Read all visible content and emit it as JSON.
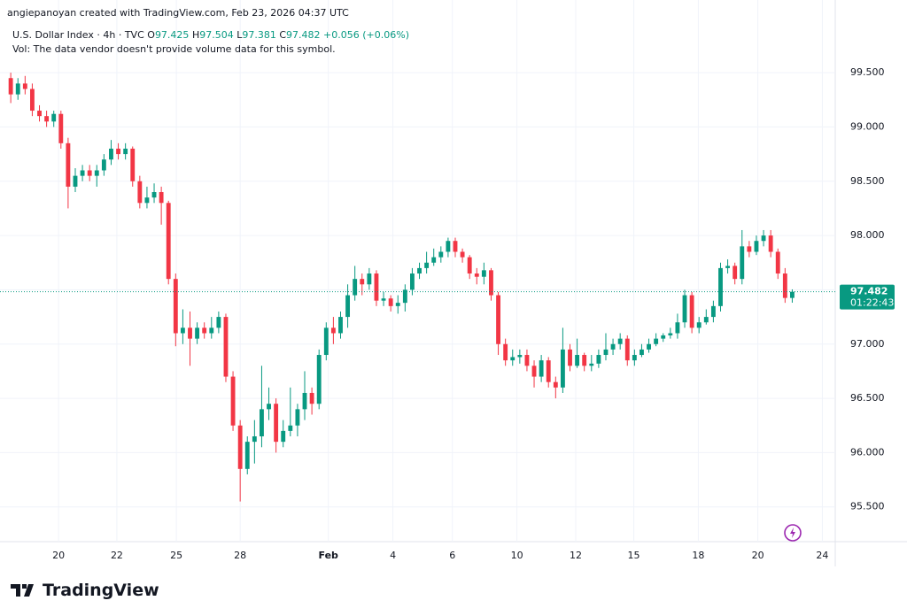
{
  "header": "angiepanoyan created with TradingView.com, Feb 23, 2026 04:37 UTC",
  "chart_data": {
    "type": "candlestick",
    "symbol": "U.S. Dollar Index · 4h · TVC",
    "legend_labels": {
      "open": "O",
      "high": "H",
      "low": "L",
      "close": "C"
    },
    "change": "+0.056 (+0.06%)",
    "volume_note": "Vol: The data vendor doesn't provide volume data for this symbol.",
    "countdown": "01:22:43",
    "up_color": "#089981",
    "down_color": "#f23645",
    "grid": true,
    "xlim": [
      -1.5,
      115
    ],
    "xticks": [
      {
        "value": 6.67,
        "label": "20"
      },
      {
        "value": 14.8,
        "label": "22"
      },
      {
        "value": 23.1,
        "label": "25"
      },
      {
        "value": 32,
        "label": "28"
      },
      {
        "value": 44.3,
        "label": "Feb"
      },
      {
        "value": 53.3,
        "label": "4"
      },
      {
        "value": 61.6,
        "label": "6"
      },
      {
        "value": 70.6,
        "label": "10"
      },
      {
        "value": 78.8,
        "label": "12"
      },
      {
        "value": 86.9,
        "label": "15"
      },
      {
        "value": 95.9,
        "label": "18"
      },
      {
        "value": 104.2,
        "label": "20"
      },
      {
        "value": 113.2,
        "label": "24"
      }
    ],
    "ylim": [
      95.18,
      99.99
    ],
    "yticks": [
      {
        "value": 95.5,
        "label": "95.500"
      },
      {
        "value": 96,
        "label": "96.000"
      },
      {
        "value": 96.5,
        "label": "96.500"
      },
      {
        "value": 97,
        "label": "97.000"
      },
      {
        "value": 97.5,
        "label": "97.500"
      },
      {
        "value": 98,
        "label": "98.000"
      },
      {
        "value": 98.5,
        "label": "98.500"
      },
      {
        "value": 99,
        "label": "99.000"
      },
      {
        "value": 99.5,
        "label": "99.500"
      }
    ],
    "open": [
      99.45,
      99.3,
      99.4,
      99.35,
      99.15,
      99.1,
      99.05,
      99.12,
      98.85,
      98.45,
      98.55,
      98.6,
      98.55,
      98.6,
      98.7,
      98.8,
      98.75,
      98.8,
      98.5,
      98.3,
      98.35,
      98.4,
      98.3,
      97.6,
      97.1,
      97.15,
      97.05,
      97.15,
      97.1,
      97.15,
      97.25,
      96.7,
      96.25,
      95.85,
      96.1,
      96.15,
      96.4,
      96.45,
      96.1,
      96.2,
      96.25,
      96.4,
      96.55,
      96.45,
      96.9,
      97.15,
      97.1,
      97.25,
      97.45,
      97.6,
      97.55,
      97.65,
      97.4,
      97.42,
      97.35,
      97.38,
      97.5,
      97.65,
      97.7,
      97.75,
      97.8,
      97.85,
      97.95,
      97.85,
      97.8,
      97.65,
      97.62,
      97.68,
      97.45,
      97.0,
      96.85,
      96.88,
      96.9,
      96.8,
      96.7,
      96.85,
      96.65,
      96.6,
      96.95,
      96.8,
      96.9,
      96.8,
      96.82,
      96.9,
      96.95,
      97.0,
      97.05,
      96.85,
      96.9,
      96.95,
      97.0,
      97.05,
      97.08,
      97.1,
      97.2,
      97.45,
      97.15,
      97.2,
      97.25,
      97.35,
      97.7,
      97.72,
      97.6,
      97.9,
      97.85,
      97.95,
      98.0,
      97.85,
      97.65,
      97.425
    ],
    "high": [
      99.5,
      99.45,
      99.47,
      99.4,
      99.2,
      99.15,
      99.15,
      99.15,
      98.9,
      98.62,
      98.65,
      98.65,
      98.65,
      98.75,
      98.88,
      98.85,
      98.85,
      98.82,
      98.55,
      98.45,
      98.48,
      98.45,
      98.32,
      97.65,
      97.32,
      97.3,
      97.2,
      97.2,
      97.25,
      97.3,
      97.28,
      96.75,
      96.3,
      96.15,
      96.3,
      96.8,
      96.6,
      96.5,
      96.3,
      96.6,
      96.45,
      96.75,
      96.6,
      96.95,
      97.2,
      97.25,
      97.3,
      97.55,
      97.72,
      97.65,
      97.7,
      97.68,
      97.48,
      97.45,
      97.45,
      97.55,
      97.7,
      97.75,
      97.85,
      97.88,
      97.9,
      97.98,
      97.98,
      97.88,
      97.82,
      97.7,
      97.75,
      97.7,
      97.48,
      97.05,
      96.95,
      96.95,
      96.95,
      96.85,
      96.9,
      96.88,
      96.7,
      97.15,
      97.0,
      97.05,
      96.92,
      96.9,
      96.95,
      97.1,
      97.05,
      97.1,
      97.08,
      96.95,
      97.0,
      97.05,
      97.1,
      97.1,
      97.15,
      97.28,
      97.5,
      97.48,
      97.25,
      97.32,
      97.4,
      97.75,
      97.78,
      97.75,
      98.05,
      97.95,
      98.0,
      98.05,
      98.05,
      97.88,
      97.7,
      97.504
    ],
    "low": [
      99.22,
      99.25,
      99.3,
      99.1,
      99.05,
      99.0,
      99.0,
      98.8,
      98.25,
      98.4,
      98.5,
      98.5,
      98.45,
      98.55,
      98.65,
      98.7,
      98.7,
      98.45,
      98.25,
      98.25,
      98.3,
      98.1,
      97.55,
      96.98,
      97.0,
      96.8,
      97.0,
      97.05,
      97.05,
      97.1,
      96.65,
      96.2,
      95.55,
      95.8,
      95.9,
      96.05,
      96.3,
      96.0,
      96.05,
      96.15,
      96.15,
      96.3,
      96.35,
      96.4,
      96.85,
      97.0,
      97.05,
      97.15,
      97.4,
      97.45,
      97.5,
      97.35,
      97.35,
      97.3,
      97.28,
      97.3,
      97.45,
      97.6,
      97.65,
      97.72,
      97.75,
      97.8,
      97.8,
      97.75,
      97.6,
      97.55,
      97.55,
      97.4,
      96.9,
      96.8,
      96.8,
      96.82,
      96.75,
      96.6,
      96.65,
      96.6,
      96.5,
      96.55,
      96.75,
      96.78,
      96.75,
      96.75,
      96.78,
      96.85,
      96.9,
      96.95,
      96.8,
      96.8,
      96.88,
      96.92,
      96.98,
      97.02,
      97.05,
      97.05,
      97.15,
      97.1,
      97.1,
      97.18,
      97.2,
      97.3,
      97.65,
      97.55,
      97.55,
      97.8,
      97.82,
      97.9,
      97.8,
      97.6,
      97.38,
      97.381
    ],
    "close": [
      99.3,
      99.4,
      99.35,
      99.15,
      99.1,
      99.05,
      99.12,
      98.85,
      98.45,
      98.55,
      98.6,
      98.55,
      98.6,
      98.7,
      98.8,
      98.75,
      98.8,
      98.5,
      98.3,
      98.35,
      98.4,
      98.3,
      97.6,
      97.1,
      97.15,
      97.05,
      97.15,
      97.1,
      97.15,
      97.25,
      96.7,
      96.25,
      95.85,
      96.1,
      96.15,
      96.4,
      96.45,
      96.1,
      96.2,
      96.25,
      96.4,
      96.55,
      96.45,
      96.9,
      97.15,
      97.1,
      97.25,
      97.45,
      97.6,
      97.55,
      97.65,
      97.4,
      97.42,
      97.35,
      97.38,
      97.5,
      97.65,
      97.7,
      97.75,
      97.8,
      97.85,
      97.95,
      97.85,
      97.8,
      97.65,
      97.62,
      97.68,
      97.45,
      97.0,
      96.85,
      96.88,
      96.9,
      96.8,
      96.7,
      96.85,
      96.65,
      96.6,
      96.95,
      96.8,
      96.9,
      96.8,
      96.82,
      96.9,
      96.95,
      97.0,
      97.05,
      96.85,
      96.9,
      96.95,
      97.0,
      97.05,
      97.08,
      97.1,
      97.2,
      97.45,
      97.15,
      97.2,
      97.25,
      97.35,
      97.7,
      97.72,
      97.6,
      97.9,
      97.85,
      97.95,
      98.0,
      97.85,
      97.65,
      97.425,
      97.482
    ]
  },
  "brand": "TradingView"
}
